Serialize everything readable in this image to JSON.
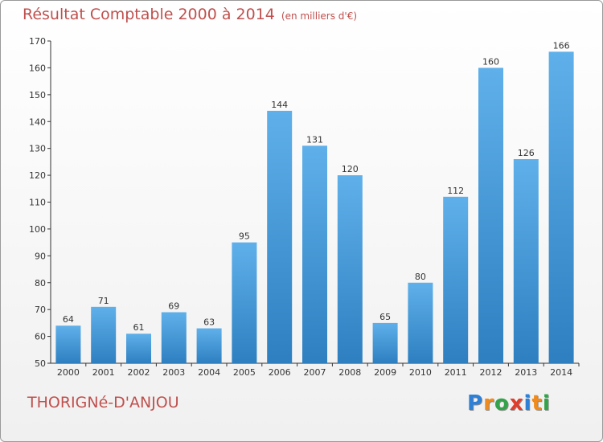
{
  "title": "Résultat Comptable 2000 à 2014",
  "subtitle": "(en milliers d'€)",
  "location": "THORIGNé-D'ANJOU",
  "logo": {
    "letters": [
      "P",
      "r",
      "o",
      "x",
      "i",
      "t",
      "i"
    ],
    "colors": [
      "#2e7fd6",
      "#f08a1c",
      "#33a34a",
      "#e23c2a",
      "#2e7fd6",
      "#f08a1c",
      "#33a34a"
    ]
  },
  "colors": {
    "bar_light": "#5fb0ea",
    "bar_dark": "#2d7fc0",
    "title": "#c0504d"
  },
  "chart_data": {
    "type": "bar",
    "title": "Résultat Comptable 2000 à 2014",
    "subtitle": "(en milliers d'€)",
    "xlabel": "",
    "ylabel": "",
    "categories": [
      "2000",
      "2001",
      "2002",
      "2003",
      "2004",
      "2005",
      "2006",
      "2007",
      "2008",
      "2009",
      "2010",
      "2011",
      "2012",
      "2013",
      "2014"
    ],
    "values": [
      64,
      71,
      61,
      69,
      63,
      95,
      144,
      131,
      120,
      65,
      80,
      112,
      160,
      126,
      166
    ],
    "ylim": [
      50,
      170
    ],
    "yticks": [
      50,
      60,
      70,
      80,
      90,
      100,
      110,
      120,
      130,
      140,
      150,
      160,
      170
    ],
    "grid": false,
    "data_labels": true
  }
}
